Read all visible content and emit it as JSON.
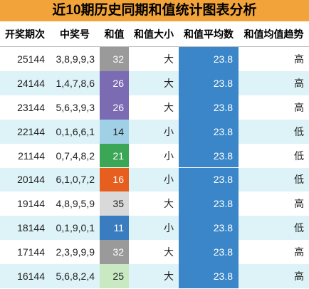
{
  "title": "近10期历史同期和值统计图表分析",
  "table": {
    "header": [
      "开奖期次",
      "中奖号",
      "和值",
      "和值大小",
      "和值平均数",
      "和值均值趋势"
    ],
    "rows": [
      [
        "25144",
        "3,8,9,9,3",
        "32",
        "大",
        "23.8",
        "高"
      ],
      [
        "24144",
        "1,4,7,8,6",
        "26",
        "大",
        "23.8",
        "高"
      ],
      [
        "23144",
        "5,6,3,9,3",
        "26",
        "大",
        "23.8",
        "高"
      ],
      [
        "22144",
        "0,1,6,6,1",
        "14",
        "小",
        "23.8",
        "低"
      ],
      [
        "21144",
        "0,7,4,8,2",
        "21",
        "小",
        "23.8",
        "低"
      ],
      [
        "20144",
        "6,1,0,7,2",
        "16",
        "小",
        "23.8",
        "低"
      ],
      [
        "19144",
        "4,8,9,5,9",
        "35",
        "大",
        "23.8",
        "高"
      ],
      [
        "18144",
        "0,1,9,0,1",
        "11",
        "小",
        "23.8",
        "低"
      ],
      [
        "17144",
        "2,3,9,9,9",
        "32",
        "大",
        "23.8",
        "高"
      ],
      [
        "16144",
        "5,6,8,2,4",
        "25",
        "大",
        "23.8",
        "高"
      ]
    ]
  }
}
